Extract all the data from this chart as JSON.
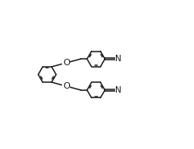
{
  "bg_color": "#ffffff",
  "line_color": "#1a1a1a",
  "line_width": 1.1,
  "font_size": 7.5,
  "fig_width": 2.41,
  "fig_height": 1.85,
  "dpi": 100,
  "xlim": [
    -0.3,
    9.8
  ],
  "ylim": [
    1.2,
    9.8
  ]
}
